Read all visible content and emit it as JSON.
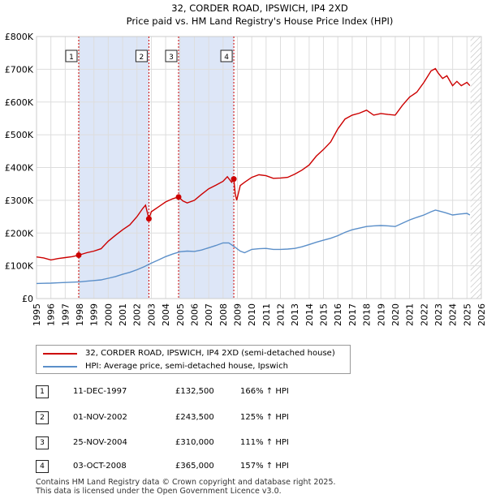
{
  "chart_data": {
    "type": "line",
    "title": "32, CORDER ROAD, IPSWICH, IP4 2XD",
    "subtitle": "Price paid vs. HM Land Registry's House Price Index (HPI)",
    "xlim": [
      1995,
      2026
    ],
    "ylim": [
      0,
      800000
    ],
    "x_ticks": [
      "1995",
      "1996",
      "1997",
      "1998",
      "1999",
      "2000",
      "2001",
      "2002",
      "2003",
      "2004",
      "2005",
      "2006",
      "2007",
      "2008",
      "2009",
      "2010",
      "2011",
      "2012",
      "2013",
      "2014",
      "2015",
      "2016",
      "2017",
      "2018",
      "2019",
      "2020",
      "2021",
      "2022",
      "2023",
      "2024",
      "2025",
      "2026"
    ],
    "y_ticks": [
      {
        "value": 0,
        "label": "£0"
      },
      {
        "value": 100000,
        "label": "£100K"
      },
      {
        "value": 200000,
        "label": "£200K"
      },
      {
        "value": 300000,
        "label": "£300K"
      },
      {
        "value": 400000,
        "label": "£400K"
      },
      {
        "value": 500000,
        "label": "£500K"
      },
      {
        "value": 600000,
        "label": "£600K"
      },
      {
        "value": 700000,
        "label": "£700K"
      },
      {
        "value": 800000,
        "label": "£800K"
      }
    ],
    "shaded_periods": [
      [
        1997.94,
        2002.83
      ],
      [
        2004.9,
        2008.75
      ]
    ],
    "hatch_from": 2025.25,
    "sales": [
      {
        "num": "1",
        "x": 1997.94,
        "price": 132500
      },
      {
        "num": "2",
        "x": 2002.83,
        "price": 243500
      },
      {
        "num": "3",
        "x": 2004.9,
        "price": 310000
      },
      {
        "num": "4",
        "x": 2008.75,
        "price": 365000
      }
    ],
    "series": [
      {
        "name": "32, CORDER ROAD, IPSWICH, IP4 2XD (semi-detached house)",
        "color": "#cc0000",
        "x": [
          1995.0,
          1995.5,
          1996.0,
          1996.5,
          1997.0,
          1997.5,
          1997.94,
          1998.5,
          1999.0,
          1999.5,
          2000.0,
          2000.5,
          2001.0,
          2001.5,
          2002.0,
          2002.4,
          2002.6,
          2002.83,
          2003.0,
          2003.5,
          2004.0,
          2004.5,
          2004.9,
          2005.2,
          2005.5,
          2006.0,
          2006.5,
          2007.0,
          2007.5,
          2008.0,
          2008.3,
          2008.6,
          2008.75,
          2008.85,
          2008.95,
          2009.2,
          2009.5,
          2010.0,
          2010.5,
          2011.0,
          2011.5,
          2012.0,
          2012.5,
          2013.0,
          2013.5,
          2014.0,
          2014.5,
          2015.0,
          2015.5,
          2016.0,
          2016.5,
          2017.0,
          2017.5,
          2018.0,
          2018.5,
          2019.0,
          2019.5,
          2020.0,
          2020.5,
          2021.0,
          2021.5,
          2022.0,
          2022.5,
          2022.8,
          2023.0,
          2023.3,
          2023.6,
          2024.0,
          2024.3,
          2024.6,
          2025.0,
          2025.2
        ],
        "values": [
          127000,
          124000,
          118000,
          122000,
          125000,
          128000,
          132500,
          140000,
          145000,
          152000,
          175000,
          193000,
          210000,
          225000,
          250000,
          275000,
          285000,
          243500,
          265000,
          280000,
          295000,
          305000,
          310000,
          298000,
          292000,
          300000,
          318000,
          335000,
          346000,
          358000,
          372000,
          355000,
          365000,
          320000,
          300000,
          345000,
          355000,
          370000,
          378000,
          375000,
          367000,
          368000,
          370000,
          380000,
          392000,
          408000,
          435000,
          455000,
          478000,
          518000,
          548000,
          560000,
          566000,
          575000,
          560000,
          565000,
          562000,
          560000,
          590000,
          615000,
          630000,
          660000,
          695000,
          702000,
          688000,
          672000,
          680000,
          650000,
          663000,
          650000,
          660000,
          650000
        ]
      },
      {
        "name": "HPI: Average price, semi-detached house, Ipswich",
        "color": "#5b8fc9",
        "x": [
          1995.0,
          1995.5,
          1996.0,
          1996.5,
          1997.0,
          1997.5,
          1998.0,
          1998.5,
          1999.0,
          1999.5,
          2000.0,
          2000.5,
          2001.0,
          2001.5,
          2002.0,
          2002.5,
          2003.0,
          2003.5,
          2004.0,
          2004.5,
          2005.0,
          2005.5,
          2006.0,
          2006.5,
          2007.0,
          2007.5,
          2008.0,
          2008.4,
          2008.8,
          2009.2,
          2009.5,
          2010.0,
          2010.5,
          2011.0,
          2011.5,
          2012.0,
          2012.5,
          2013.0,
          2013.5,
          2014.0,
          2014.5,
          2015.0,
          2015.5,
          2016.0,
          2016.5,
          2017.0,
          2017.5,
          2018.0,
          2018.5,
          2019.0,
          2019.5,
          2020.0,
          2020.5,
          2021.0,
          2021.5,
          2022.0,
          2022.5,
          2022.8,
          2023.0,
          2023.5,
          2024.0,
          2024.5,
          2025.0,
          2025.2
        ],
        "values": [
          46000,
          46500,
          47000,
          48000,
          49000,
          50000,
          51000,
          53000,
          55000,
          57000,
          62000,
          67000,
          74000,
          80000,
          88000,
          97000,
          108000,
          118000,
          128000,
          136000,
          143000,
          145000,
          144000,
          148000,
          155000,
          162000,
          170000,
          170000,
          158000,
          145000,
          140000,
          150000,
          152000,
          153000,
          150000,
          150000,
          151000,
          153000,
          158000,
          165000,
          172000,
          178000,
          184000,
          192000,
          202000,
          210000,
          215000,
          220000,
          222000,
          223000,
          222000,
          220000,
          230000,
          240000,
          248000,
          255000,
          265000,
          270000,
          268000,
          262000,
          255000,
          258000,
          260000,
          255000
        ]
      }
    ]
  },
  "legend": {
    "property_label": "32, CORDER ROAD, IPSWICH, IP4 2XD (semi-detached house)",
    "hpi_label": "HPI: Average price, semi-detached house, Ipswich"
  },
  "transactions": [
    {
      "num": "1",
      "date": "11-DEC-1997",
      "price": "£132,500",
      "hpi": "166% ↑ HPI"
    },
    {
      "num": "2",
      "date": "01-NOV-2002",
      "price": "£243,500",
      "hpi": "125% ↑ HPI"
    },
    {
      "num": "3",
      "date": "25-NOV-2004",
      "price": "£310,000",
      "hpi": "111% ↑ HPI"
    },
    {
      "num": "4",
      "date": "03-OCT-2008",
      "price": "£365,000",
      "hpi": "157% ↑ HPI"
    }
  ],
  "footer": {
    "line1": "Contains HM Land Registry data © Crown copyright and database right 2025.",
    "line2": "This data is licensed under the Open Government Licence v3.0."
  },
  "colors": {
    "property": "#cc0000",
    "hpi": "#5b8fc9",
    "shade": "#dde6f7",
    "grid": "#dddddd"
  }
}
